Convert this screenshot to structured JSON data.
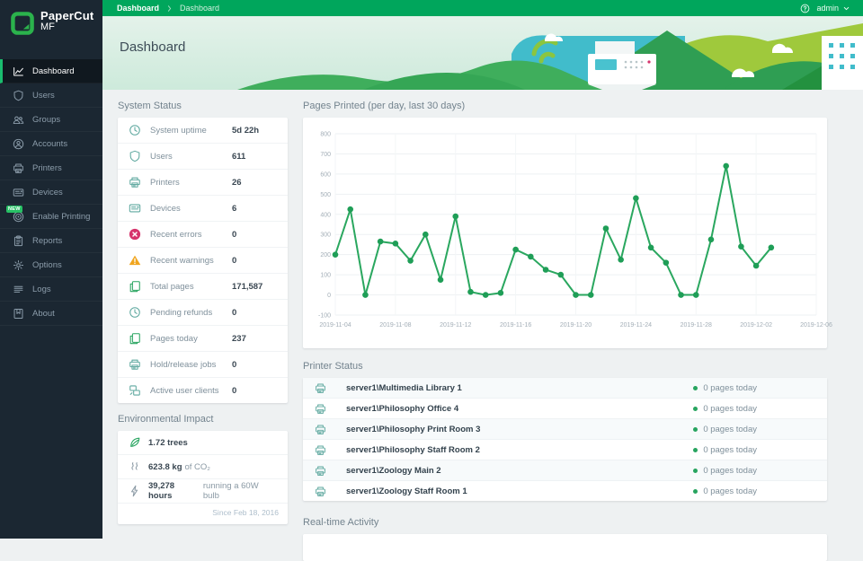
{
  "topbar": {
    "breadcrumbs": [
      "Dashboard",
      "Dashboard"
    ],
    "user": "admin"
  },
  "sidebar": {
    "logo_line1": "PaperCut",
    "logo_line2": "MF",
    "items": [
      {
        "label": "Dashboard",
        "icon": "dashboard",
        "active": true
      },
      {
        "label": "Users",
        "icon": "shield",
        "active": false
      },
      {
        "label": "Groups",
        "icon": "groups",
        "active": false
      },
      {
        "label": "Accounts",
        "icon": "accounts",
        "active": false
      },
      {
        "label": "Printers",
        "icon": "printer",
        "active": false
      },
      {
        "label": "Devices",
        "icon": "device",
        "active": false
      },
      {
        "label": "Enable Printing",
        "icon": "target",
        "active": false,
        "badge": "NEW"
      },
      {
        "label": "Reports",
        "icon": "reports",
        "active": false
      },
      {
        "label": "Options",
        "icon": "gear",
        "active": false
      },
      {
        "label": "Logs",
        "icon": "logs",
        "active": false
      },
      {
        "label": "About",
        "icon": "about",
        "active": false
      }
    ]
  },
  "header": {
    "title": "Dashboard"
  },
  "system_status": {
    "heading": "System Status",
    "rows": [
      {
        "icon": "clock",
        "color": "#5ea89f",
        "label": "System uptime",
        "value": "5d 22h"
      },
      {
        "icon": "shield",
        "color": "#5ea89f",
        "label": "Users",
        "value": "611"
      },
      {
        "icon": "printer",
        "color": "#5ea89f",
        "label": "Printers",
        "value": "26"
      },
      {
        "icon": "device",
        "color": "#5ea89f",
        "label": "Devices",
        "value": "6"
      },
      {
        "icon": "error",
        "color": "#d6336c",
        "label": "Recent errors",
        "value": "0"
      },
      {
        "icon": "warning",
        "color": "#f0a51f",
        "label": "Recent warnings",
        "value": "0"
      },
      {
        "icon": "pages",
        "color": "#27a45f",
        "label": "Total pages",
        "value": "171,587"
      },
      {
        "icon": "clock",
        "color": "#5ea89f",
        "label": "Pending refunds",
        "value": "0"
      },
      {
        "icon": "pages",
        "color": "#27a45f",
        "label": "Pages today",
        "value": "237"
      },
      {
        "icon": "printer",
        "color": "#5ea89f",
        "label": "Hold/release jobs",
        "value": "0"
      },
      {
        "icon": "share",
        "color": "#5ea89f",
        "label": "Active user clients",
        "value": "0"
      }
    ]
  },
  "environmental": {
    "heading": "Environmental Impact",
    "rows": [
      {
        "icon": "leaf",
        "color": "#27a45f",
        "strong": "1.72 trees",
        "rest": ""
      },
      {
        "icon": "co2",
        "color": "#8a99a4",
        "strong": "623.8 kg",
        "rest": "of CO₂"
      },
      {
        "icon": "bolt",
        "color": "#8a99a4",
        "strong": "39,278 hours",
        "rest": "running a 60W bulb"
      }
    ],
    "since": "Since Feb 18, 2016"
  },
  "chart_data": {
    "type": "line",
    "title": "Pages Printed (per day, last 30 days)",
    "xlabel": "",
    "ylabel": "",
    "x": [
      "2019-11-04",
      "2019-11-05",
      "2019-11-06",
      "2019-11-07",
      "2019-11-08",
      "2019-11-09",
      "2019-11-10",
      "2019-11-11",
      "2019-11-12",
      "2019-11-13",
      "2019-11-14",
      "2019-11-15",
      "2019-11-16",
      "2019-11-17",
      "2019-11-18",
      "2019-11-19",
      "2019-11-20",
      "2019-11-21",
      "2019-11-22",
      "2019-11-23",
      "2019-11-24",
      "2019-11-25",
      "2019-11-26",
      "2019-11-27",
      "2019-11-28",
      "2019-11-29",
      "2019-11-30",
      "2019-12-01",
      "2019-12-02",
      "2019-12-03"
    ],
    "values": [
      200,
      425,
      0,
      265,
      255,
      170,
      300,
      75,
      390,
      15,
      0,
      10,
      225,
      190,
      125,
      100,
      0,
      0,
      330,
      175,
      480,
      235,
      160,
      0,
      0,
      275,
      640,
      240,
      145,
      235
    ],
    "x_tick_labels": [
      "2019-11-04",
      "2019-11-08",
      "2019-11-12",
      "2019-11-16",
      "2019-11-20",
      "2019-11-24",
      "2019-11-28",
      "2019-12-02",
      "2019-12-06"
    ],
    "x_axis_span": 32,
    "ylim": [
      -100,
      800
    ],
    "y_ticks": [
      800,
      700,
      600,
      500,
      400,
      300,
      200,
      100,
      0,
      -100
    ],
    "grid": true,
    "legend": "none",
    "line_color": "#2aa75f",
    "dot_color": "#1f9e57"
  },
  "printer_status": {
    "heading": "Printer Status",
    "rows": [
      {
        "name": "server1\\Multimedia Library 1",
        "status": "0 pages today"
      },
      {
        "name": "server1\\Philosophy Office 4",
        "status": "0 pages today"
      },
      {
        "name": "server1\\Philosophy Print Room 3",
        "status": "0 pages today"
      },
      {
        "name": "server1\\Philosophy Staff Room 2",
        "status": "0 pages today"
      },
      {
        "name": "server1\\Zoology Main 2",
        "status": "0 pages today"
      },
      {
        "name": "server1\\Zoology Staff Room 1",
        "status": "0 pages today"
      }
    ]
  },
  "realtime": {
    "heading": "Real-time Activity"
  },
  "colors": {
    "brand_green": "#00a65c",
    "sidebar_bg": "#1b2732",
    "accent_green": "#27a45f",
    "error_red": "#d6336c",
    "warning_amber": "#f0a51f"
  }
}
